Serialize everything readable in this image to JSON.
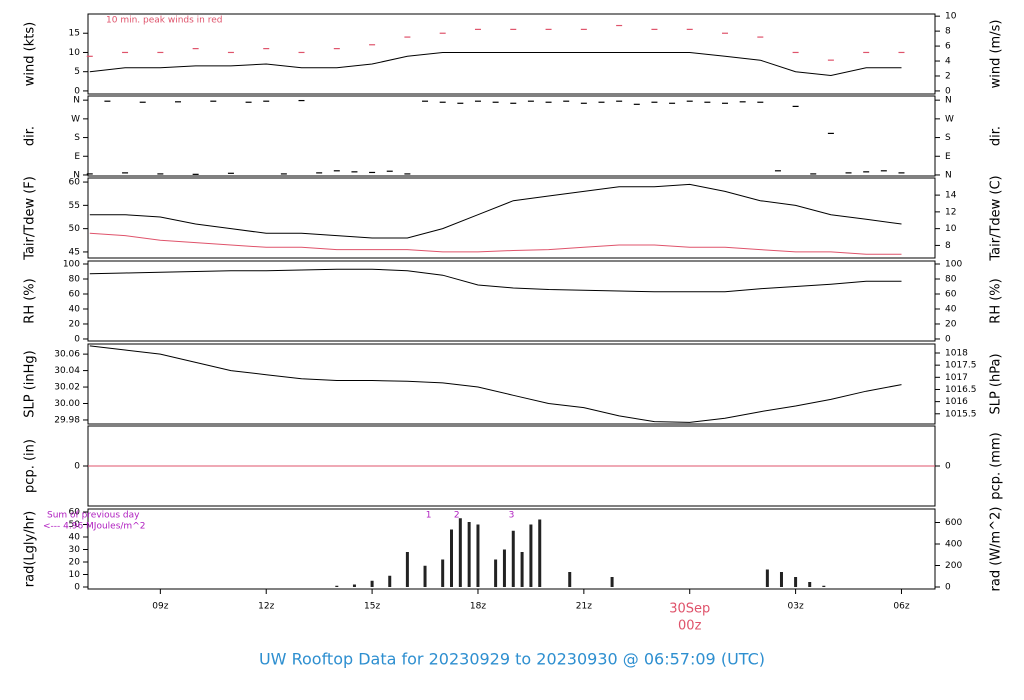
{
  "title": "UW Rooftop Data for 20230929  to  20230930 @ 06:57:09  (UTC)",
  "chart_data": [
    {
      "type": "line",
      "ylabel": "wind (kts)",
      "y2label": "wind (m/s)",
      "annotation": "10 min. peak winds in red",
      "xlim": [
        6.95,
        30.95
      ],
      "ylim": [
        -0.8,
        20
      ],
      "yticks": [
        0,
        5,
        10,
        15
      ],
      "y2lim": [
        -0.41,
        10.29
      ],
      "y2ticks": [
        0,
        2,
        4,
        6,
        8,
        10
      ],
      "x": [
        7,
        8,
        9,
        10,
        11,
        12,
        13,
        14,
        15,
        16,
        17,
        18,
        19,
        20,
        21,
        22,
        23,
        24,
        25,
        26,
        27,
        28,
        29,
        30
      ],
      "series": [
        {
          "name": "wind",
          "color": "#000000",
          "values": [
            5,
            6,
            6,
            6.5,
            6.5,
            7,
            6,
            6,
            7,
            9,
            10,
            10,
            10,
            10,
            10,
            10,
            10,
            10,
            9,
            8,
            5,
            4,
            6,
            6
          ]
        },
        {
          "name": "peak",
          "color": "#df536b",
          "marker": "dash",
          "values": [
            9,
            10,
            10,
            11,
            10,
            11,
            10,
            11,
            12,
            14,
            15,
            16,
            16,
            16,
            16,
            17,
            16,
            16,
            15,
            14,
            10,
            8,
            10,
            10
          ]
        }
      ]
    },
    {
      "type": "scatter",
      "ylabel": "dir.",
      "y2label": "dir.",
      "xlim": [
        6.95,
        30.95
      ],
      "ylim": [
        -5,
        380
      ],
      "yticks": [
        {
          "value": 0,
          "label": "N"
        },
        {
          "value": 90,
          "label": "E"
        },
        {
          "value": 180,
          "label": "S"
        },
        {
          "value": 270,
          "label": "W"
        },
        {
          "value": 360,
          "label": "N"
        }
      ],
      "y2lim": [
        -5,
        380
      ],
      "y2ticks": [
        {
          "value": 0,
          "label": "N"
        },
        {
          "value": 90,
          "label": "E"
        },
        {
          "value": 180,
          "label": "S"
        },
        {
          "value": 270,
          "label": "W"
        },
        {
          "value": 360,
          "label": "N"
        }
      ],
      "x": [
        7,
        7.5,
        8,
        8.5,
        9,
        9.5,
        10,
        10.5,
        11,
        11.5,
        12,
        12.5,
        13,
        13.5,
        14,
        14.5,
        15,
        15.5,
        16,
        16.5,
        17,
        17.5,
        18,
        18.5,
        19,
        19.5,
        20,
        20.5,
        21,
        21.5,
        22,
        22.5,
        23,
        23.5,
        24,
        24.5,
        25,
        25.5,
        26,
        26.5,
        27,
        27.5,
        28,
        28.5,
        29,
        29.5,
        30
      ],
      "series": [
        {
          "name": "direction",
          "color": "#000000",
          "marker": "dash",
          "values": [
            5,
            355,
            10,
            350,
            5,
            352,
            3,
            355,
            8,
            350,
            355,
            5,
            358,
            10,
            20,
            15,
            12,
            18,
            5,
            355,
            350,
            345,
            355,
            350,
            345,
            355,
            350,
            355,
            345,
            350,
            355,
            340,
            350,
            345,
            355,
            350,
            345,
            352,
            350,
            20,
            330,
            5,
            200,
            10,
            15,
            20,
            10
          ]
        }
      ]
    },
    {
      "type": "line",
      "ylabel": "Tair/Tdew (F)",
      "y2label": "Tair/Tdew (C)",
      "xlim": [
        6.95,
        30.95
      ],
      "ylim": [
        43.7,
        60.87
      ],
      "yticks": [
        45,
        50,
        55,
        60
      ],
      "y2lim": [
        6.5,
        16.04
      ],
      "y2ticks": [
        8,
        10,
        12,
        14
      ],
      "x": [
        7,
        8,
        9,
        10,
        11,
        12,
        13,
        14,
        15,
        16,
        17,
        18,
        19,
        20,
        21,
        22,
        23,
        24,
        25,
        26,
        27,
        28,
        29,
        30
      ],
      "series": [
        {
          "name": "Tair",
          "color": "#000000",
          "values": [
            53,
            53,
            52.5,
            51,
            50,
            49,
            49,
            48.5,
            48,
            48,
            50,
            53,
            56,
            57,
            58,
            59,
            59,
            59.5,
            58,
            56,
            55,
            53,
            52,
            51
          ]
        },
        {
          "name": "Tdew",
          "color": "#df536b",
          "values": [
            49,
            48.5,
            47.5,
            47,
            46.5,
            46,
            46,
            45.5,
            45.5,
            45.5,
            45,
            45,
            45.3,
            45.5,
            46,
            46.5,
            46.5,
            46,
            46,
            45.5,
            45,
            45,
            44.5,
            44.5
          ]
        }
      ]
    },
    {
      "type": "line",
      "ylabel": "RH (%)",
      "y2label": "RH (%)",
      "xlim": [
        6.95,
        30.95
      ],
      "ylim": [
        -2.7,
        104
      ],
      "yticks": [
        0,
        20,
        40,
        60,
        80,
        100
      ],
      "y2lim": [
        -2.7,
        104
      ],
      "y2ticks": [
        0,
        20,
        40,
        60,
        80,
        100
      ],
      "x": [
        7,
        8,
        9,
        10,
        11,
        12,
        13,
        14,
        15,
        16,
        17,
        18,
        19,
        20,
        21,
        22,
        23,
        24,
        25,
        26,
        27,
        28,
        29,
        30
      ],
      "series": [
        {
          "name": "RH",
          "color": "#000000",
          "values": [
            87,
            88,
            89,
            90,
            91,
            91,
            92,
            93,
            93,
            91,
            85,
            72,
            68,
            66,
            65,
            64,
            63,
            63,
            63,
            67,
            70,
            73,
            77,
            77
          ]
        }
      ]
    },
    {
      "type": "line",
      "ylabel": "SLP (inHg)",
      "y2label": "SLP (hPa)",
      "xlim": [
        6.95,
        30.95
      ],
      "ylim": [
        29.9751,
        30.0723
      ],
      "yticks": [
        29.98,
        {
          "value": 30,
          "label": "30.00"
        },
        30.02,
        30.04,
        30.06
      ],
      "y2lim": [
        1015.08,
        1018.37
      ],
      "y2ticks": [
        1015.5,
        1016,
        1016.5,
        1017,
        1017.5,
        1018
      ],
      "x": [
        7,
        8,
        9,
        10,
        11,
        12,
        13,
        14,
        15,
        16,
        17,
        18,
        19,
        20,
        21,
        22,
        23,
        24,
        25,
        26,
        27,
        28,
        29,
        30
      ],
      "series": [
        {
          "name": "SLP",
          "color": "#000000",
          "values": [
            30.07,
            30.065,
            30.06,
            30.05,
            30.04,
            30.035,
            30.03,
            30.028,
            30.028,
            30.027,
            30.025,
            30.02,
            30.01,
            30.0,
            29.995,
            29.985,
            29.978,
            29.977,
            29.982,
            29.99,
            29.997,
            30.005,
            30.015,
            30.023
          ]
        }
      ]
    },
    {
      "type": "line",
      "ylabel": "pcp. (in)",
      "y2label": "pcp. (mm)",
      "xlim": [
        6.95,
        30.95
      ],
      "ylim": [
        -1,
        1
      ],
      "yticks": [
        0
      ],
      "y2lim": [
        -25.4,
        25.4
      ],
      "y2ticks": [
        0
      ],
      "x": [
        6.95,
        30.95
      ],
      "series": [
        {
          "name": "pcp",
          "color": "#df536b",
          "values": [
            0,
            0
          ]
        }
      ]
    },
    {
      "type": "bar",
      "ylabel": "rad(Lgly/hr)",
      "y2label": "rad (W/m^2)",
      "note": [
        "Sum of previous day",
        "<--- 4.96 MJoules/m^2"
      ],
      "xlim": [
        6.95,
        30.95
      ],
      "ylim": [
        -1.6,
        62.4
      ],
      "yticks": [
        0,
        10,
        20,
        30,
        40,
        50,
        60
      ],
      "y2lim": [
        -18.6,
        725.7
      ],
      "y2ticks": [
        0,
        200,
        400,
        600
      ],
      "xticks": [
        {
          "value": 9,
          "label": "09z"
        },
        {
          "value": 12,
          "label": "12z"
        },
        {
          "value": 15,
          "label": "15z"
        },
        {
          "value": 18,
          "label": "18z"
        },
        {
          "value": 21,
          "label": "21z"
        },
        {
          "value": 24,
          "label": "00z"
        },
        {
          "value": 27,
          "label": "03z"
        },
        {
          "value": 30,
          "label": "06z"
        }
      ],
      "date_label": {
        "value": 24,
        "label": "30Sep"
      },
      "markers": [
        {
          "x": 16.6,
          "text": "1"
        },
        {
          "x": 17.4,
          "text": "2"
        },
        {
          "x": 18.95,
          "text": "3"
        }
      ],
      "x": [
        14,
        14.5,
        15,
        15.5,
        16,
        16.5,
        17,
        17.25,
        17.5,
        17.75,
        18,
        18.5,
        18.75,
        19,
        19.25,
        19.5,
        19.75,
        20.6,
        21.8,
        26.2,
        26.6,
        27,
        27.4,
        27.8
      ],
      "series": [
        {
          "name": "rad",
          "color": "#222222",
          "values": [
            1,
            2,
            5,
            9,
            28,
            17,
            22,
            46,
            55,
            52,
            50,
            22,
            30,
            45,
            28,
            50,
            54,
            12,
            8,
            14,
            12,
            8,
            4,
            1
          ]
        }
      ]
    }
  ]
}
